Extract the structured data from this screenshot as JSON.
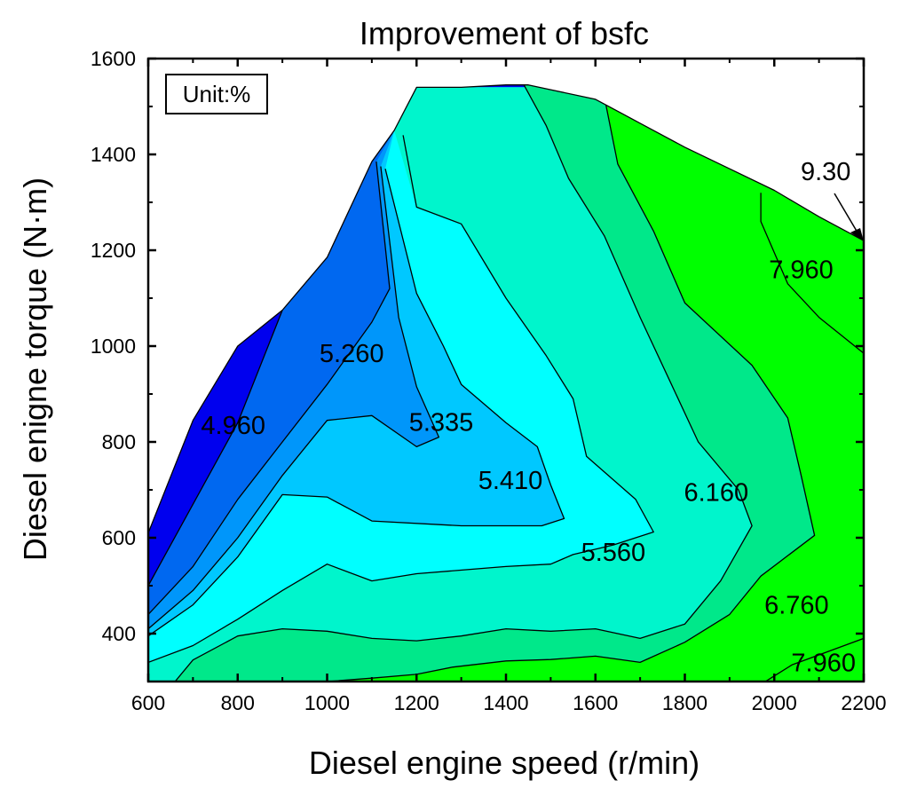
{
  "chart_data": {
    "type": "contour",
    "title": "Improvement of bsfc",
    "xlabel": "Diesel engine speed (r/min)",
    "ylabel": "Diesel enigne torque (N·m)",
    "xlim": [
      600,
      2200
    ],
    "ylim": [
      300,
      1600
    ],
    "xticks": [
      600,
      800,
      1000,
      1200,
      1400,
      1600,
      1800,
      2000,
      2200
    ],
    "yticks": [
      400,
      600,
      800,
      1000,
      1200,
      1400,
      1600
    ],
    "unit_box": "Unit:%",
    "colors": {
      "bg": "#0000ee",
      "l1": "#0068f0",
      "l2": "#0096fa",
      "l3": "#00c8ff",
      "l4": "#00ffff",
      "l5": "#00f5cc",
      "l6": "#00e88a",
      "l7": "#00ff00"
    },
    "envelope": [
      [
        600,
        610
      ],
      [
        700,
        845
      ],
      [
        800,
        1000
      ],
      [
        900,
        1075
      ],
      [
        1000,
        1185
      ],
      [
        1100,
        1385
      ],
      [
        1150,
        1450
      ],
      [
        1200,
        1540
      ],
      [
        1300,
        1540
      ],
      [
        1400,
        1545
      ],
      [
        1450,
        1545
      ],
      [
        1500,
        1535
      ],
      [
        1600,
        1515
      ],
      [
        1700,
        1465
      ],
      [
        1800,
        1415
      ],
      [
        1900,
        1370
      ],
      [
        2000,
        1325
      ],
      [
        2100,
        1270
      ],
      [
        2200,
        1220
      ],
      [
        2200,
        300
      ],
      [
        600,
        300
      ]
    ],
    "levels": [
      {
        "name": "l1",
        "polygon": [
          [
            600,
            500
          ],
          [
            700,
            670
          ],
          [
            800,
            840
          ],
          [
            900,
            1075
          ],
          [
            1000,
            1185
          ],
          [
            1100,
            1385
          ],
          [
            1150,
            1450
          ],
          [
            1200,
            1540
          ],
          [
            2200,
            1540
          ],
          [
            2200,
            300
          ],
          [
            600,
            300
          ]
        ]
      },
      {
        "name": "l2",
        "polygon": [
          [
            600,
            440
          ],
          [
            700,
            540
          ],
          [
            800,
            680
          ],
          [
            900,
            800
          ],
          [
            1000,
            920
          ],
          [
            1100,
            1050
          ],
          [
            1140,
            1120
          ],
          [
            1110,
            1385
          ],
          [
            1150,
            1450
          ],
          [
            1200,
            1540
          ],
          [
            2200,
            1540
          ],
          [
            2200,
            300
          ],
          [
            600,
            300
          ]
        ]
      },
      {
        "name": "l3",
        "polygon": [
          [
            600,
            410
          ],
          [
            700,
            490
          ],
          [
            800,
            600
          ],
          [
            900,
            730
          ],
          [
            1000,
            845
          ],
          [
            1100,
            855
          ],
          [
            1200,
            790
          ],
          [
            1250,
            810
          ],
          [
            1200,
            915
          ],
          [
            1160,
            1060
          ],
          [
            1120,
            1375
          ],
          [
            1150,
            1450
          ],
          [
            1200,
            1540
          ],
          [
            2200,
            1540
          ],
          [
            2200,
            300
          ],
          [
            600,
            300
          ]
        ]
      },
      {
        "name": "l4",
        "polygon": [
          [
            600,
            395
          ],
          [
            700,
            460
          ],
          [
            800,
            560
          ],
          [
            900,
            690
          ],
          [
            1000,
            685
          ],
          [
            1100,
            635
          ],
          [
            1300,
            625
          ],
          [
            1480,
            625
          ],
          [
            1530,
            640
          ],
          [
            1500,
            710
          ],
          [
            1470,
            790
          ],
          [
            1400,
            840
          ],
          [
            1300,
            920
          ],
          [
            1260,
            1000
          ],
          [
            1200,
            1110
          ],
          [
            1130,
            1370
          ],
          [
            1150,
            1450
          ],
          [
            1200,
            1540
          ],
          [
            2200,
            1540
          ],
          [
            2200,
            300
          ],
          [
            600,
            300
          ]
        ]
      },
      {
        "name": "l5",
        "polygon": [
          [
            600,
            340
          ],
          [
            700,
            375
          ],
          [
            800,
            430
          ],
          [
            900,
            490
          ],
          [
            1000,
            545
          ],
          [
            1100,
            510
          ],
          [
            1200,
            525
          ],
          [
            1400,
            540
          ],
          [
            1500,
            545
          ],
          [
            1550,
            565
          ],
          [
            1640,
            585
          ],
          [
            1730,
            612
          ],
          [
            1690,
            680
          ],
          [
            1580,
            770
          ],
          [
            1550,
            890
          ],
          [
            1490,
            980
          ],
          [
            1400,
            1100
          ],
          [
            1300,
            1255
          ],
          [
            1200,
            1290
          ],
          [
            1150,
            1450
          ],
          [
            1200,
            1540
          ],
          [
            1435,
            1540
          ],
          [
            2200,
            1540
          ],
          [
            2200,
            300
          ],
          [
            600,
            300
          ]
        ]
      },
      {
        "name": "l6",
        "polygon": [
          [
            660,
            300
          ],
          [
            700,
            345
          ],
          [
            800,
            395
          ],
          [
            900,
            410
          ],
          [
            1000,
            405
          ],
          [
            1100,
            390
          ],
          [
            1200,
            385
          ],
          [
            1300,
            395
          ],
          [
            1400,
            410
          ],
          [
            1500,
            405
          ],
          [
            1600,
            410
          ],
          [
            1700,
            390
          ],
          [
            1800,
            420
          ],
          [
            1880,
            510
          ],
          [
            1950,
            625
          ],
          [
            1920,
            700
          ],
          [
            1830,
            800
          ],
          [
            1770,
            920
          ],
          [
            1700,
            1060
          ],
          [
            1620,
            1230
          ],
          [
            1540,
            1350
          ],
          [
            1490,
            1460
          ],
          [
            1440,
            1545
          ],
          [
            2200,
            1545
          ],
          [
            2200,
            300
          ]
        ]
      },
      {
        "name": "l7",
        "polygon": [
          [
            1000,
            300
          ],
          [
            1100,
            307
          ],
          [
            1200,
            315
          ],
          [
            1280,
            330
          ],
          [
            1400,
            343
          ],
          [
            1500,
            346
          ],
          [
            1600,
            353
          ],
          [
            1700,
            340
          ],
          [
            1800,
            382
          ],
          [
            1900,
            440
          ],
          [
            1970,
            520
          ],
          [
            2090,
            605
          ],
          [
            2060,
            730
          ],
          [
            2030,
            850
          ],
          [
            1950,
            960
          ],
          [
            1800,
            1090
          ],
          [
            1730,
            1240
          ],
          [
            1650,
            1380
          ],
          [
            1620,
            1520
          ],
          [
            2200,
            1540
          ],
          [
            2200,
            300
          ]
        ]
      },
      {
        "name": "l8",
        "polygon": [
          [
            1980,
            300
          ],
          [
            2040,
            335
          ],
          [
            2200,
            390
          ],
          [
            2200,
            300
          ]
        ]
      },
      {
        "name": "l9",
        "polygon": [
          [
            2200,
            985
          ],
          [
            2100,
            1060
          ],
          [
            2030,
            1130
          ],
          [
            1970,
            1260
          ],
          [
            1970,
            1320
          ],
          [
            2200,
            1540
          ]
        ]
      }
    ],
    "isolines": [
      [
        [
          600,
          500
        ],
        [
          700,
          670
        ],
        [
          800,
          840
        ],
        [
          900,
          1075
        ]
      ],
      [
        [
          600,
          440
        ],
        [
          700,
          540
        ],
        [
          800,
          680
        ],
        [
          900,
          800
        ],
        [
          1000,
          920
        ],
        [
          1100,
          1050
        ],
        [
          1140,
          1120
        ],
        [
          1110,
          1385
        ]
      ],
      [
        [
          600,
          410
        ],
        [
          700,
          490
        ],
        [
          800,
          600
        ],
        [
          900,
          730
        ],
        [
          1000,
          845
        ],
        [
          1100,
          855
        ],
        [
          1200,
          790
        ],
        [
          1250,
          810
        ],
        [
          1200,
          915
        ],
        [
          1160,
          1060
        ],
        [
          1120,
          1375
        ]
      ],
      [
        [
          600,
          395
        ],
        [
          700,
          460
        ],
        [
          800,
          560
        ],
        [
          900,
          690
        ],
        [
          1000,
          685
        ],
        [
          1100,
          635
        ],
        [
          1300,
          625
        ],
        [
          1480,
          625
        ],
        [
          1530,
          640
        ],
        [
          1500,
          710
        ],
        [
          1470,
          790
        ],
        [
          1400,
          840
        ],
        [
          1300,
          920
        ],
        [
          1260,
          1000
        ],
        [
          1200,
          1110
        ],
        [
          1130,
          1370
        ]
      ],
      [
        [
          600,
          340
        ],
        [
          700,
          375
        ],
        [
          800,
          430
        ],
        [
          900,
          490
        ],
        [
          1000,
          545
        ],
        [
          1100,
          510
        ],
        [
          1200,
          525
        ],
        [
          1400,
          540
        ],
        [
          1500,
          545
        ],
        [
          1550,
          565
        ],
        [
          1640,
          585
        ],
        [
          1730,
          612
        ],
        [
          1690,
          680
        ],
        [
          1580,
          770
        ],
        [
          1550,
          890
        ],
        [
          1490,
          980
        ],
        [
          1400,
          1100
        ],
        [
          1300,
          1255
        ],
        [
          1200,
          1290
        ],
        [
          1170,
          1440
        ]
      ],
      [
        [
          660,
          300
        ],
        [
          700,
          345
        ],
        [
          800,
          395
        ],
        [
          900,
          410
        ],
        [
          1000,
          405
        ],
        [
          1100,
          390
        ],
        [
          1200,
          385
        ],
        [
          1300,
          395
        ],
        [
          1400,
          410
        ],
        [
          1500,
          405
        ],
        [
          1600,
          410
        ],
        [
          1700,
          390
        ],
        [
          1800,
          420
        ],
        [
          1880,
          510
        ],
        [
          1950,
          625
        ],
        [
          1920,
          700
        ],
        [
          1830,
          800
        ],
        [
          1770,
          920
        ],
        [
          1700,
          1060
        ],
        [
          1620,
          1230
        ],
        [
          1540,
          1350
        ],
        [
          1490,
          1460
        ],
        [
          1440,
          1545
        ]
      ],
      [
        [
          1000,
          300
        ],
        [
          1100,
          307
        ],
        [
          1200,
          315
        ],
        [
          1280,
          330
        ],
        [
          1400,
          343
        ],
        [
          1500,
          346
        ],
        [
          1600,
          353
        ],
        [
          1700,
          340
        ],
        [
          1800,
          382
        ],
        [
          1900,
          440
        ],
        [
          1970,
          520
        ],
        [
          2090,
          605
        ],
        [
          2060,
          730
        ],
        [
          2030,
          850
        ],
        [
          1950,
          960
        ],
        [
          1800,
          1090
        ],
        [
          1730,
          1240
        ],
        [
          1650,
          1380
        ],
        [
          1620,
          1520
        ]
      ],
      [
        [
          1980,
          300
        ],
        [
          2040,
          335
        ],
        [
          2200,
          390
        ]
      ],
      [
        [
          2200,
          985
        ],
        [
          2100,
          1060
        ],
        [
          2030,
          1130
        ],
        [
          1970,
          1260
        ],
        [
          1970,
          1320
        ]
      ]
    ],
    "contour_labels": [
      {
        "text": "4.960",
        "x": 790,
        "y": 835
      },
      {
        "text": "5.260",
        "x": 1055,
        "y": 985
      },
      {
        "text": "5.335",
        "x": 1255,
        "y": 842
      },
      {
        "text": "5.410",
        "x": 1410,
        "y": 720
      },
      {
        "text": "5.560",
        "x": 1640,
        "y": 570
      },
      {
        "text": "6.160",
        "x": 1870,
        "y": 695
      },
      {
        "text": "6.760",
        "x": 2050,
        "y": 460
      },
      {
        "text": "7.960",
        "x": 2060,
        "y": 1160
      },
      {
        "text": "7.960",
        "x": 2110,
        "y": 340
      },
      {
        "text": "9.30",
        "x": 2115,
        "y": 1365
      }
    ]
  }
}
